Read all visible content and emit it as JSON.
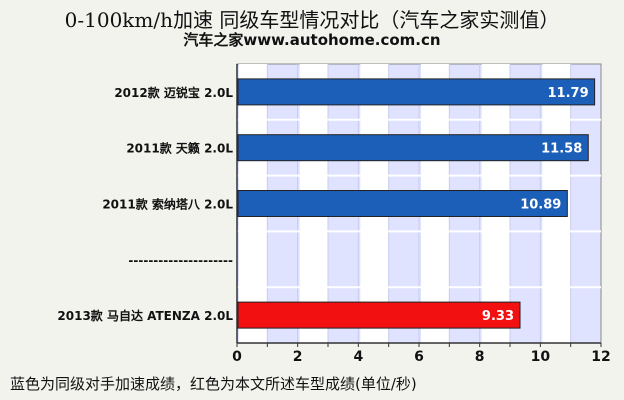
{
  "title": "0-100km/h加速  同级车型情况对比（汽车之家实测值）",
  "subtitle": "汽车之家www.autohome.com.cn",
  "footnote": "蓝色为同级对手加速成绩，红色为本文所述车型成绩(单位/秒)",
  "colors": {
    "blue_bar": "#1c5fb8",
    "red_bar": "#f21010",
    "plot_bg": "#dfe3ff",
    "grid_band": "#ffffff"
  },
  "chart_data": {
    "type": "bar",
    "orientation": "horizontal",
    "categories": [
      "2012款 迈锐宝 2.0L",
      "2011款 天籁 2.0L",
      "2011款 索纳塔八 2.0L",
      "---------------------",
      "2013款 马自达 ATENZA 2.0L"
    ],
    "values": [
      11.79,
      11.58,
      10.89,
      null,
      9.33
    ],
    "data_labels": [
      "11.79",
      "11.58",
      "10.89",
      "",
      "9.33"
    ],
    "bar_colors": [
      "blue",
      "blue",
      "blue",
      null,
      "red"
    ],
    "xlim": [
      0,
      12
    ],
    "xticks": [
      0,
      2,
      4,
      6,
      8,
      10,
      12
    ],
    "grid": true
  }
}
